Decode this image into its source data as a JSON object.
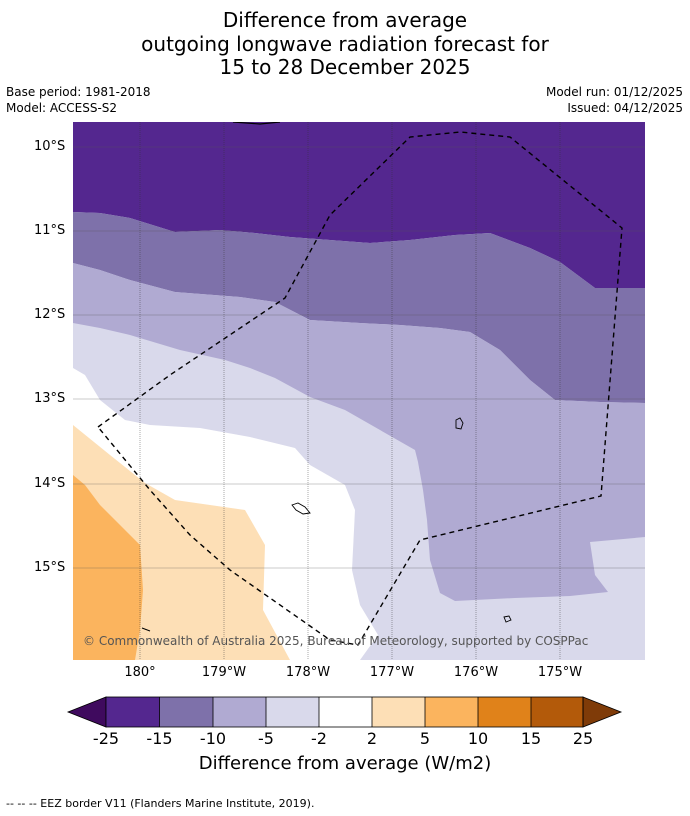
{
  "title": {
    "line1": "Difference from average",
    "line2": "outgoing longwave radiation forecast for",
    "line3": "15 to 28 December 2025"
  },
  "meta": {
    "base_period": "Base period: 1981-2018",
    "model": "Model: ACCESS-S2",
    "model_run": "Model run: 01/12/2025",
    "issued": "Issued: 04/12/2025"
  },
  "map": {
    "lat_labels": [
      "10°S",
      "11°S",
      "12°S",
      "13°S",
      "14°S",
      "15°S"
    ],
    "lon_labels": [
      "180°",
      "179°W",
      "178°W",
      "177°W",
      "176°W",
      "175°W"
    ],
    "copyright": "© Commonwealth of Australia 2025, Bureau of Meteorology, supported by COSPPac"
  },
  "colorbar": {
    "ticks": [
      "-25",
      "-15",
      "-10",
      "-5",
      "-2",
      "2",
      "5",
      "10",
      "15",
      "25"
    ],
    "colors": [
      "#3f0a5e",
      "#54278f",
      "#7e71aa",
      "#b0aad2",
      "#d9d9eb",
      "#ffffff",
      "#fddfb6",
      "#fbb45e",
      "#e0821a",
      "#b35a0a",
      "#7f3b08"
    ],
    "title": "Difference from average (W/m2)"
  },
  "footnote": "--  --  -- EEZ border V11 (Flanders Marine Institute, 2019)."
}
